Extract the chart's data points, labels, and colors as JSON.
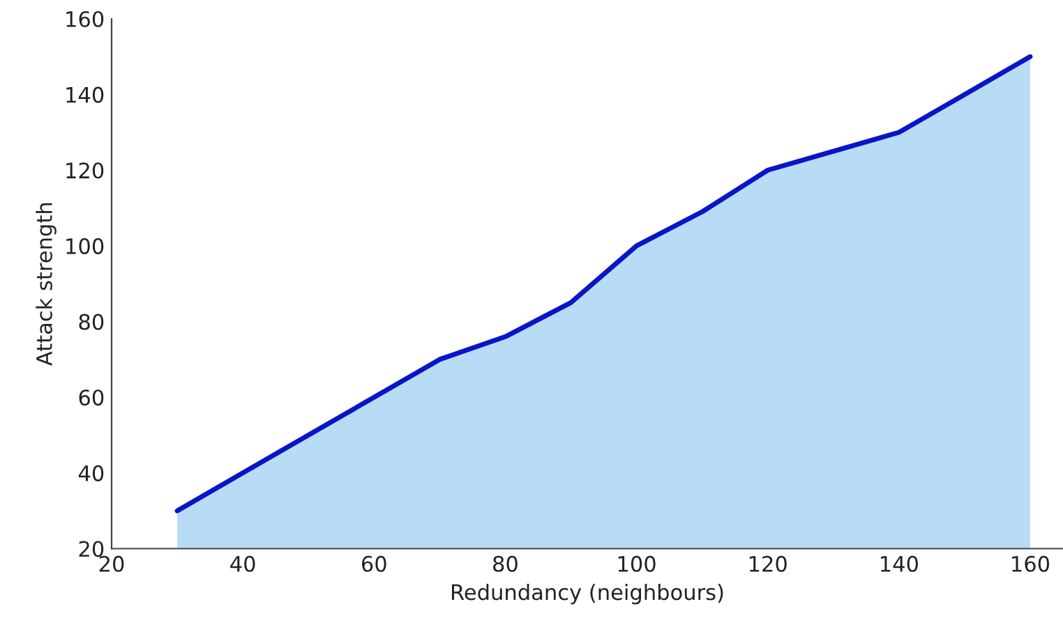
{
  "chart_data": {
    "type": "area",
    "xlabel": "Redundancy (neighbours)",
    "ylabel": "Attack strength",
    "x": [
      30,
      40,
      50,
      60,
      70,
      80,
      90,
      100,
      110,
      120,
      130,
      140,
      150,
      160
    ],
    "series": [
      {
        "color": "#0a14c8",
        "values": [
          30,
          40,
          50,
          60,
          70,
          76,
          85,
          100,
          109,
          120,
          125,
          130,
          140,
          150
        ]
      }
    ],
    "xlim": [
      20,
      165
    ],
    "xticks": [
      20,
      40,
      60,
      80,
      100,
      120,
      140,
      160
    ],
    "ylim": [
      20,
      160
    ],
    "yticks": [
      20,
      40,
      60,
      80,
      100,
      120,
      140,
      160
    ]
  }
}
